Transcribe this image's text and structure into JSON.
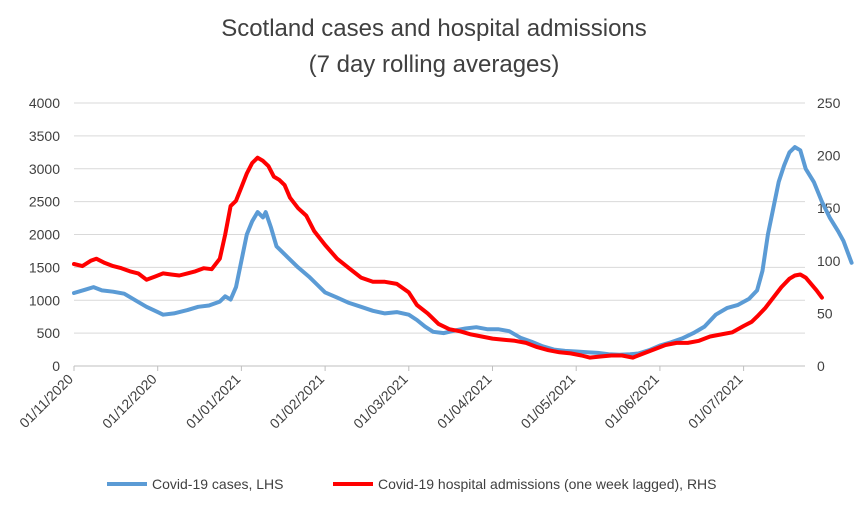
{
  "chart_data": {
    "type": "line",
    "title": "Scotland cases and hospital admissions",
    "subtitle": "(7 day rolling averages)",
    "x_tick_labels": [
      "01/11/2020",
      "01/12/2020",
      "01/01/2021",
      "01/02/2021",
      "01/03/2021",
      "01/04/2021",
      "01/05/2021",
      "01/06/2021",
      "01/07/2021"
    ],
    "left_axis": {
      "ylim": [
        0,
        4000
      ],
      "ticks": [
        "0",
        "500",
        "1000",
        "1500",
        "2000",
        "2500",
        "3000",
        "3500",
        "4000"
      ]
    },
    "right_axis": {
      "ylim": [
        0,
        250
      ],
      "ticks": [
        "0",
        "50",
        "100",
        "150",
        "200",
        "250"
      ]
    },
    "grid": true,
    "legend_position": "bottom",
    "series": [
      {
        "name": "Covid-19 cases, LHS",
        "axis": "left",
        "color": "#5B9BD5",
        "points": [
          [
            "2020-11-01",
            1110
          ],
          [
            "2020-11-05",
            1160
          ],
          [
            "2020-11-08",
            1200
          ],
          [
            "2020-11-11",
            1150
          ],
          [
            "2020-11-15",
            1130
          ],
          [
            "2020-11-19",
            1100
          ],
          [
            "2020-11-23",
            1000
          ],
          [
            "2020-11-27",
            900
          ],
          [
            "2020-12-01",
            820
          ],
          [
            "2020-12-03",
            780
          ],
          [
            "2020-12-07",
            800
          ],
          [
            "2020-12-12",
            850
          ],
          [
            "2020-12-16",
            900
          ],
          [
            "2020-12-20",
            920
          ],
          [
            "2020-12-24",
            980
          ],
          [
            "2020-12-26",
            1060
          ],
          [
            "2020-12-28",
            1010
          ],
          [
            "2020-12-30",
            1200
          ],
          [
            "2021-01-01",
            1600
          ],
          [
            "2021-01-03",
            2000
          ],
          [
            "2021-01-05",
            2200
          ],
          [
            "2021-01-07",
            2340
          ],
          [
            "2021-01-09",
            2260
          ],
          [
            "2021-01-10",
            2340
          ],
          [
            "2021-01-12",
            2100
          ],
          [
            "2021-01-14",
            1820
          ],
          [
            "2021-01-18",
            1660
          ],
          [
            "2021-01-22",
            1500
          ],
          [
            "2021-01-26",
            1360
          ],
          [
            "2021-01-29",
            1240
          ],
          [
            "2021-02-01",
            1120
          ],
          [
            "2021-02-05",
            1040
          ],
          [
            "2021-02-09",
            960
          ],
          [
            "2021-02-13",
            900
          ],
          [
            "2021-02-17",
            840
          ],
          [
            "2021-02-21",
            800
          ],
          [
            "2021-02-25",
            820
          ],
          [
            "2021-03-01",
            780
          ],
          [
            "2021-03-04",
            700
          ],
          [
            "2021-03-07",
            600
          ],
          [
            "2021-03-10",
            520
          ],
          [
            "2021-03-14",
            500
          ],
          [
            "2021-03-18",
            540
          ],
          [
            "2021-03-22",
            570
          ],
          [
            "2021-03-26",
            590
          ],
          [
            "2021-03-30",
            560
          ],
          [
            "2021-04-03",
            560
          ],
          [
            "2021-04-07",
            530
          ],
          [
            "2021-04-11",
            430
          ],
          [
            "2021-04-15",
            370
          ],
          [
            "2021-04-19",
            300
          ],
          [
            "2021-04-23",
            250
          ],
          [
            "2021-04-27",
            230
          ],
          [
            "2021-05-01",
            220
          ],
          [
            "2021-05-05",
            210
          ],
          [
            "2021-05-09",
            200
          ],
          [
            "2021-05-13",
            180
          ],
          [
            "2021-05-17",
            170
          ],
          [
            "2021-05-21",
            180
          ],
          [
            "2021-05-24",
            190
          ],
          [
            "2021-05-28",
            240
          ],
          [
            "2021-06-01",
            310
          ],
          [
            "2021-06-05",
            360
          ],
          [
            "2021-06-09",
            420
          ],
          [
            "2021-06-13",
            500
          ],
          [
            "2021-06-17",
            600
          ],
          [
            "2021-06-21",
            780
          ],
          [
            "2021-06-25",
            880
          ],
          [
            "2021-06-29",
            930
          ],
          [
            "2021-07-03",
            1020
          ],
          [
            "2021-07-06",
            1150
          ],
          [
            "2021-07-08",
            1450
          ],
          [
            "2021-07-10",
            2000
          ],
          [
            "2021-07-12",
            2400
          ],
          [
            "2021-07-14",
            2800
          ],
          [
            "2021-07-16",
            3050
          ],
          [
            "2021-07-18",
            3250
          ],
          [
            "2021-07-20",
            3330
          ],
          [
            "2021-07-22",
            3280
          ],
          [
            "2021-07-24",
            3000
          ],
          [
            "2021-07-27",
            2800
          ],
          [
            "2021-07-30",
            2500
          ],
          [
            "2021-08-02",
            2250
          ],
          [
            "2021-08-05",
            2050
          ],
          [
            "2021-08-07",
            1900
          ],
          [
            "2021-08-10",
            1570
          ]
        ]
      },
      {
        "name": "Covid-19 hospital admissions (one week lagged), RHS",
        "axis": "right",
        "color": "#FF0000",
        "points": [
          [
            "2020-11-01",
            97
          ],
          [
            "2020-11-04",
            95
          ],
          [
            "2020-11-07",
            100
          ],
          [
            "2020-11-09",
            102
          ],
          [
            "2020-11-12",
            98
          ],
          [
            "2020-11-15",
            95
          ],
          [
            "2020-11-18",
            93
          ],
          [
            "2020-11-21",
            90
          ],
          [
            "2020-11-24",
            88
          ],
          [
            "2020-11-27",
            82
          ],
          [
            "2020-11-30",
            85
          ],
          [
            "2020-12-03",
            88
          ],
          [
            "2020-12-06",
            87
          ],
          [
            "2020-12-09",
            86
          ],
          [
            "2020-12-12",
            88
          ],
          [
            "2020-12-15",
            90
          ],
          [
            "2020-12-18",
            93
          ],
          [
            "2020-12-21",
            92
          ],
          [
            "2020-12-24",
            102
          ],
          [
            "2020-12-26",
            125
          ],
          [
            "2020-12-28",
            152
          ],
          [
            "2020-12-30",
            157
          ],
          [
            "2021-01-01",
            170
          ],
          [
            "2021-01-03",
            183
          ],
          [
            "2021-01-05",
            193
          ],
          [
            "2021-01-07",
            198
          ],
          [
            "2021-01-09",
            195
          ],
          [
            "2021-01-11",
            190
          ],
          [
            "2021-01-13",
            180
          ],
          [
            "2021-01-15",
            177
          ],
          [
            "2021-01-17",
            172
          ],
          [
            "2021-01-19",
            160
          ],
          [
            "2021-01-22",
            150
          ],
          [
            "2021-01-25",
            143
          ],
          [
            "2021-01-28",
            128
          ],
          [
            "2021-02-01",
            115
          ],
          [
            "2021-02-05",
            102
          ],
          [
            "2021-02-09",
            93
          ],
          [
            "2021-02-13",
            84
          ],
          [
            "2021-02-17",
            80
          ],
          [
            "2021-02-21",
            80
          ],
          [
            "2021-02-25",
            78
          ],
          [
            "2021-03-01",
            70
          ],
          [
            "2021-03-04",
            58
          ],
          [
            "2021-03-08",
            50
          ],
          [
            "2021-03-12",
            40
          ],
          [
            "2021-03-16",
            35
          ],
          [
            "2021-03-20",
            33
          ],
          [
            "2021-03-24",
            30
          ],
          [
            "2021-03-28",
            28
          ],
          [
            "2021-04-01",
            26
          ],
          [
            "2021-04-05",
            25
          ],
          [
            "2021-04-09",
            24
          ],
          [
            "2021-04-13",
            22
          ],
          [
            "2021-04-17",
            18
          ],
          [
            "2021-04-21",
            15
          ],
          [
            "2021-04-25",
            13
          ],
          [
            "2021-04-29",
            12
          ],
          [
            "2021-05-03",
            10
          ],
          [
            "2021-05-06",
            8
          ],
          [
            "2021-05-10",
            9
          ],
          [
            "2021-05-14",
            10
          ],
          [
            "2021-05-18",
            10
          ],
          [
            "2021-05-22",
            8
          ],
          [
            "2021-05-26",
            12
          ],
          [
            "2021-05-30",
            16
          ],
          [
            "2021-06-03",
            20
          ],
          [
            "2021-06-07",
            22
          ],
          [
            "2021-06-11",
            22
          ],
          [
            "2021-06-15",
            24
          ],
          [
            "2021-06-19",
            28
          ],
          [
            "2021-06-23",
            30
          ],
          [
            "2021-06-27",
            32
          ],
          [
            "2021-07-01",
            38
          ],
          [
            "2021-07-04",
            42
          ],
          [
            "2021-07-06",
            47
          ],
          [
            "2021-07-09",
            55
          ],
          [
            "2021-07-12",
            65
          ],
          [
            "2021-07-15",
            75
          ],
          [
            "2021-07-18",
            83
          ],
          [
            "2021-07-20",
            86
          ],
          [
            "2021-07-22",
            87
          ],
          [
            "2021-07-24",
            84
          ],
          [
            "2021-07-26",
            78
          ],
          [
            "2021-07-28",
            72
          ],
          [
            "2021-07-30",
            65
          ]
        ]
      }
    ]
  }
}
